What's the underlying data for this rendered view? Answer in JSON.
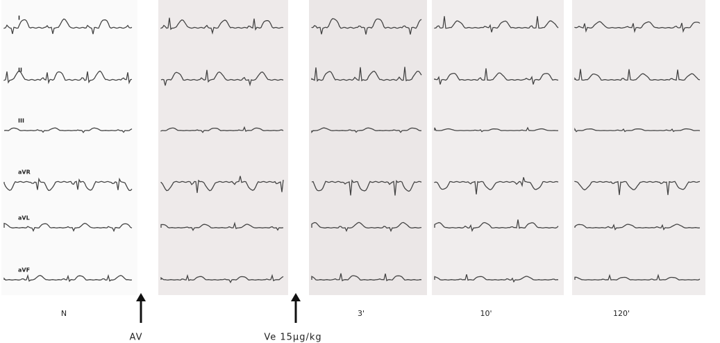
{
  "leads": [
    "I",
    "II",
    "III",
    "aVR",
    "aVL",
    "aVF"
  ],
  "panels": [
    {
      "label": "N"
    },
    {
      "label": "3'"
    },
    {
      "label": "10'"
    },
    {
      "label": "120'"
    }
  ],
  "markers": [
    {
      "label": "AV"
    },
    {
      "label": "Ve 15µg/kg"
    }
  ]
}
